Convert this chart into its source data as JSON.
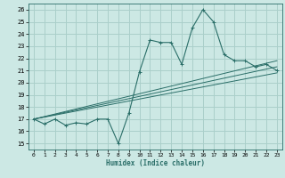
{
  "xlabel": "Humidex (Indice chaleur)",
  "xlim": [
    -0.5,
    23.5
  ],
  "ylim": [
    14.5,
    26.5
  ],
  "xticks": [
    0,
    1,
    2,
    3,
    4,
    5,
    6,
    7,
    8,
    9,
    10,
    11,
    12,
    13,
    14,
    15,
    16,
    17,
    18,
    19,
    20,
    21,
    22,
    23
  ],
  "yticks": [
    15,
    16,
    17,
    18,
    19,
    20,
    21,
    22,
    23,
    24,
    25,
    26
  ],
  "bg_color": "#cce8e4",
  "grid_color": "#aacfca",
  "line_color": "#2a6e68",
  "line1_x": [
    0,
    1,
    2,
    3,
    4,
    5,
    6,
    7,
    8,
    9,
    10,
    11,
    12,
    13,
    14,
    15,
    16,
    17,
    18,
    19,
    20,
    21,
    22,
    23
  ],
  "line1_y": [
    17.0,
    16.6,
    17.0,
    16.5,
    16.7,
    16.6,
    17.0,
    17.0,
    15.0,
    17.5,
    20.9,
    23.5,
    23.3,
    23.3,
    21.5,
    24.5,
    26.0,
    25.0,
    22.3,
    21.8,
    21.8,
    21.3,
    21.5,
    21.0
  ],
  "line2_x": [
    0,
    23
  ],
  "line2_y": [
    17.0,
    20.8
  ],
  "line3_x": [
    0,
    23
  ],
  "line3_y": [
    17.0,
    21.3
  ],
  "line4_x": [
    0,
    23
  ],
  "line4_y": [
    17.0,
    21.8
  ]
}
